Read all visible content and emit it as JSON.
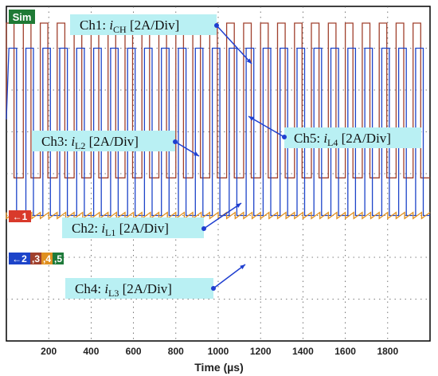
{
  "chart_data": {
    "type": "line",
    "title": "",
    "xlabel": "Time (µs)",
    "ylabel": "",
    "xlim": [
      0,
      2000
    ],
    "x_ticks": [
      200,
      400,
      600,
      800,
      1000,
      1200,
      1400,
      1600,
      1800
    ],
    "grid": true,
    "mode_badge": "Sim",
    "y_per_div_A": 2,
    "switching_period_us": 80,
    "channels": [
      {
        "name": "Ch1",
        "symbol": "i",
        "subscript": "CH",
        "scale": "[2A/Div]",
        "color": "#d93a2b",
        "offset_div": 5.15,
        "mean_A": 0,
        "ripple_A": 0.08,
        "shape": "ripple"
      },
      {
        "name": "Ch5",
        "symbol": "i",
        "subscript": "L4",
        "scale": "[2A/Div]",
        "color": "#1e7a3a",
        "offset_div": 5.15,
        "mean_A": 3.3,
        "ripple_A": 0.55,
        "shape": "sawtooth"
      },
      {
        "name": "Ch3",
        "symbol": "i",
        "subscript": "L2",
        "scale": "[2A/Div]",
        "color": "#a0402d",
        "offset_div": 1.3,
        "mean_A": 0,
        "high_A": 4.6,
        "low_A": -2.8,
        "shape": "pulse"
      },
      {
        "name": "Ch2",
        "symbol": "i",
        "subscript": "L1",
        "scale": "[2A/Div]",
        "color": "#1d44c9",
        "offset_div": 1.3,
        "mean_A": 0,
        "high_A": 3.4,
        "low_A": -4.6,
        "shape": "pulse"
      },
      {
        "name": "Ch4",
        "symbol": "i",
        "subscript": "L3",
        "scale": "[2A/Div]",
        "color": "#e09020",
        "offset_div": -1.0,
        "mean_A": 0,
        "ripple_A": 0.3,
        "shape": "sawtooth"
      }
    ],
    "markers": {
      "ch1": "1",
      "group": [
        "2",
        "3",
        "4",
        "5"
      ]
    },
    "arrow_glyph": "←",
    "annotation_colors": {
      "label_bg": "#b9f0f3",
      "arrow": "#1f3fd0"
    }
  }
}
